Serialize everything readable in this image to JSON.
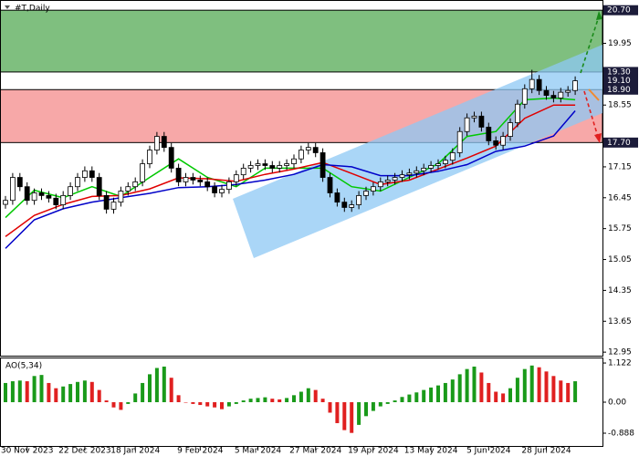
{
  "chart_data": [
    {
      "type": "candlestick",
      "title": "#T,Daily",
      "categories": [
        null,
        null,
        null,
        "30 Nov 2023",
        null,
        null,
        null,
        null,
        null,
        null,
        null,
        "22 Dec 2023",
        null,
        null,
        null,
        null,
        null,
        null,
        "18 Jan 2024",
        null,
        null,
        null,
        null,
        null,
        null,
        null,
        null,
        "9 Feb 2024",
        null,
        null,
        null,
        null,
        null,
        null,
        null,
        "5 Mar 2024",
        null,
        null,
        null,
        null,
        null,
        null,
        null,
        "27 Mar 2024",
        null,
        null,
        null,
        null,
        null,
        null,
        null,
        "19 Apr 2024",
        null,
        null,
        null,
        null,
        null,
        null,
        null,
        "13 May 2024",
        null,
        null,
        null,
        null,
        null,
        null,
        null,
        "5 Jun 2024",
        null,
        null,
        null,
        null,
        null,
        null,
        null,
        "28 Jun 2024",
        null,
        null,
        null,
        null
      ],
      "candles": {
        "open": [
          16.3,
          16.39,
          16.91,
          16.7,
          16.39,
          16.56,
          16.5,
          16.44,
          16.29,
          16.5,
          16.7,
          16.91,
          17.06,
          16.91,
          16.5,
          16.19,
          16.35,
          16.6,
          16.7,
          16.81,
          17.22,
          17.53,
          17.84,
          17.59,
          17.12,
          16.81,
          16.91,
          16.85,
          16.81,
          16.7,
          16.56,
          16.64,
          16.81,
          16.97,
          17.12,
          17.18,
          17.22,
          17.18,
          17.12,
          17.18,
          17.22,
          17.33,
          17.53,
          17.59,
          17.47,
          16.91,
          16.56,
          16.35,
          16.23,
          16.29,
          16.5,
          16.6,
          16.7,
          16.81,
          16.85,
          16.91,
          16.97,
          17.01,
          17.06,
          17.12,
          17.18,
          17.22,
          17.3,
          17.47,
          17.95,
          18.26,
          18.3,
          18.05,
          17.74,
          17.64,
          17.84,
          18.15,
          18.57,
          18.92,
          19.13,
          18.88,
          18.77,
          18.71,
          18.84,
          18.88
        ],
        "high": [
          16.49,
          17.01,
          17.01,
          16.8,
          16.66,
          16.66,
          16.6,
          16.54,
          16.6,
          16.8,
          17.01,
          17.16,
          17.16,
          17.01,
          16.6,
          16.45,
          16.7,
          16.8,
          16.91,
          17.32,
          17.63,
          17.94,
          17.94,
          17.69,
          17.22,
          17.01,
          17.01,
          16.95,
          16.91,
          16.8,
          16.74,
          16.91,
          17.07,
          17.22,
          17.28,
          17.32,
          17.32,
          17.28,
          17.28,
          17.32,
          17.43,
          17.63,
          17.69,
          17.69,
          17.57,
          17.01,
          16.66,
          16.45,
          16.39,
          16.6,
          16.7,
          16.8,
          16.91,
          16.95,
          17.01,
          17.07,
          17.11,
          17.16,
          17.22,
          17.28,
          17.32,
          17.4,
          17.57,
          18.05,
          18.36,
          18.4,
          18.4,
          18.15,
          17.84,
          17.94,
          18.25,
          18.67,
          19.02,
          19.35,
          19.23,
          18.98,
          18.87,
          18.94,
          18.98,
          19.2
        ],
        "low": [
          16.2,
          16.29,
          16.6,
          16.29,
          16.29,
          16.4,
          16.34,
          16.19,
          16.19,
          16.4,
          16.6,
          16.81,
          16.81,
          16.4,
          16.09,
          16.09,
          16.25,
          16.5,
          16.6,
          16.71,
          17.12,
          17.43,
          17.49,
          17.02,
          16.71,
          16.71,
          16.75,
          16.71,
          16.6,
          16.46,
          16.46,
          16.54,
          16.71,
          16.87,
          17.02,
          17.08,
          17.08,
          17.02,
          17.02,
          17.08,
          17.12,
          17.23,
          17.43,
          17.37,
          16.81,
          16.46,
          16.25,
          16.13,
          16.13,
          16.19,
          16.4,
          16.5,
          16.6,
          16.71,
          16.75,
          16.81,
          16.87,
          16.91,
          16.96,
          17.02,
          17.08,
          17.12,
          17.2,
          17.37,
          17.85,
          18.16,
          17.95,
          17.64,
          17.54,
          17.54,
          17.74,
          18.05,
          18.47,
          18.82,
          18.78,
          18.67,
          18.61,
          18.61,
          18.74,
          18.78
        ],
        "close": [
          16.39,
          16.91,
          16.7,
          16.39,
          16.56,
          16.5,
          16.44,
          16.29,
          16.5,
          16.7,
          16.91,
          17.06,
          16.91,
          16.5,
          16.19,
          16.35,
          16.6,
          16.7,
          16.81,
          17.22,
          17.53,
          17.84,
          17.59,
          17.12,
          16.81,
          16.91,
          16.85,
          16.81,
          16.7,
          16.56,
          16.64,
          16.81,
          16.97,
          17.12,
          17.18,
          17.22,
          17.18,
          17.12,
          17.18,
          17.22,
          17.33,
          17.53,
          17.59,
          17.47,
          16.91,
          16.56,
          16.35,
          16.23,
          16.29,
          16.5,
          16.6,
          16.7,
          16.81,
          16.85,
          16.91,
          16.97,
          17.01,
          17.06,
          17.12,
          17.18,
          17.22,
          17.3,
          17.47,
          17.95,
          18.26,
          18.3,
          18.05,
          17.74,
          17.64,
          17.84,
          18.15,
          18.57,
          18.92,
          19.13,
          18.88,
          18.77,
          18.71,
          18.84,
          18.88,
          19.1
        ],
        "up_color": "#ffffff",
        "down_color": "#000000"
      },
      "ma_x": [
        0,
        4,
        8,
        12,
        16,
        20,
        24,
        28,
        32,
        36,
        40,
        44,
        48,
        52,
        56,
        60,
        64,
        68,
        72,
        76,
        79
      ],
      "moving_averages": [
        {
          "color": "#00c800",
          "values": [
            16.0,
            16.62,
            16.45,
            16.7,
            16.48,
            16.91,
            17.33,
            16.91,
            16.7,
            17.12,
            17.12,
            17.12,
            16.7,
            16.6,
            16.91,
            17.22,
            17.84,
            17.95,
            18.67,
            18.71,
            18.67
          ]
        },
        {
          "color": "#e00000",
          "values": [
            15.57,
            16.05,
            16.3,
            16.48,
            16.5,
            16.65,
            16.9,
            16.88,
            16.82,
            16.98,
            17.1,
            17.25,
            17.0,
            16.75,
            16.85,
            17.1,
            17.35,
            17.62,
            18.25,
            18.55,
            18.55
          ]
        },
        {
          "color": "#0000c8",
          "values": [
            15.3,
            15.95,
            16.2,
            16.35,
            16.45,
            16.55,
            16.68,
            16.7,
            16.75,
            16.85,
            16.98,
            17.2,
            17.15,
            16.95,
            16.95,
            17.05,
            17.2,
            17.5,
            17.62,
            17.85,
            18.42
          ]
        }
      ],
      "zones": [
        {
          "from": 19.3,
          "to": 20.7,
          "color": "#7fbf7f"
        },
        {
          "from": 17.7,
          "to": 18.9,
          "color": "#f7a8a8"
        }
      ],
      "price_labels": [
        {
          "value": 20.7,
          "label": "20.70"
        },
        {
          "value": 19.3,
          "label": "19.30"
        },
        {
          "value": 19.1,
          "label": "19.10"
        },
        {
          "value": 18.9,
          "label": "18.90"
        },
        {
          "value": 17.7,
          "label": "17.70"
        }
      ],
      "ylim": [
        12.87,
        20.89
      ],
      "yticks": [
        12.95,
        13.65,
        14.35,
        15.05,
        15.75,
        16.45,
        17.15,
        18.55,
        19.95
      ]
    },
    {
      "type": "ao",
      "title": "AO(5,34)",
      "values": [
        0.55,
        0.6,
        0.62,
        0.6,
        0.75,
        0.78,
        0.55,
        0.4,
        0.45,
        0.52,
        0.58,
        0.62,
        0.58,
        0.35,
        0.05,
        -0.15,
        -0.22,
        -0.05,
        0.25,
        0.55,
        0.8,
        0.98,
        1.02,
        0.7,
        0.2,
        0.0,
        -0.05,
        -0.08,
        -0.12,
        -0.15,
        -0.2,
        -0.12,
        -0.05,
        0.05,
        0.1,
        0.12,
        0.14,
        0.1,
        0.08,
        0.12,
        0.2,
        0.3,
        0.4,
        0.35,
        0.1,
        -0.3,
        -0.6,
        -0.8,
        -0.88,
        -0.65,
        -0.4,
        -0.25,
        -0.12,
        -0.05,
        0.05,
        0.15,
        0.22,
        0.28,
        0.35,
        0.42,
        0.48,
        0.55,
        0.65,
        0.8,
        0.95,
        1.02,
        0.85,
        0.55,
        0.3,
        0.25,
        0.4,
        0.7,
        0.95,
        1.05,
        1.0,
        0.88,
        0.75,
        0.62,
        0.55,
        0.6
      ],
      "up_color": "#1a9a1a",
      "down_color": "#e02020",
      "ylim": [
        -1.28,
        1.28
      ],
      "yticks": [
        {
          "value": 1.122,
          "label": "1.122"
        },
        {
          "value": 0,
          "label": "0.00"
        },
        {
          "value": -0.888,
          "label": "-0.888"
        }
      ]
    }
  ]
}
